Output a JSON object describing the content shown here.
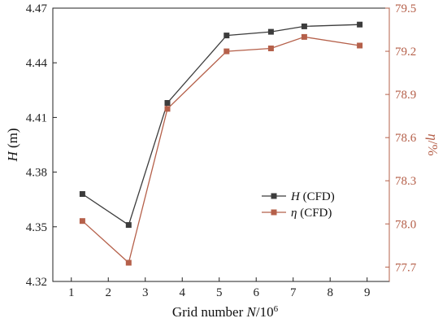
{
  "chart_data": {
    "type": "line",
    "x": [
      1.3,
      2.55,
      3.6,
      5.2,
      6.4,
      7.3,
      8.8
    ],
    "xlabel": "Grid number N/10^6",
    "xlim": [
      0.5,
      9.6
    ],
    "xticks": [
      1,
      2,
      3,
      4,
      5,
      6,
      7,
      8,
      9
    ],
    "ylabel_left": "H (m)",
    "ylim_left": [
      4.32,
      4.47
    ],
    "yticks_left": [
      "4.32",
      "4.35",
      "4.38",
      "4.41",
      "4.44",
      "4.47"
    ],
    "ylabel_right": "η/%",
    "ylim_right": [
      77.6,
      79.5
    ],
    "yticks_right": [
      "77.7",
      "78.0",
      "78.3",
      "78.6",
      "78.9",
      "79.2",
      "79.5"
    ],
    "grid": false,
    "legend_position": "center-right",
    "series": [
      {
        "name": "H (CFD)",
        "axis": "left",
        "color": "#3c3c3c",
        "values": [
          4.368,
          4.351,
          4.418,
          4.455,
          4.457,
          4.46,
          4.461
        ]
      },
      {
        "name": "η (CFD)",
        "axis": "right",
        "color": "#b5604a",
        "values": [
          78.02,
          77.73,
          78.8,
          79.2,
          79.22,
          79.3,
          79.24
        ]
      }
    ]
  }
}
